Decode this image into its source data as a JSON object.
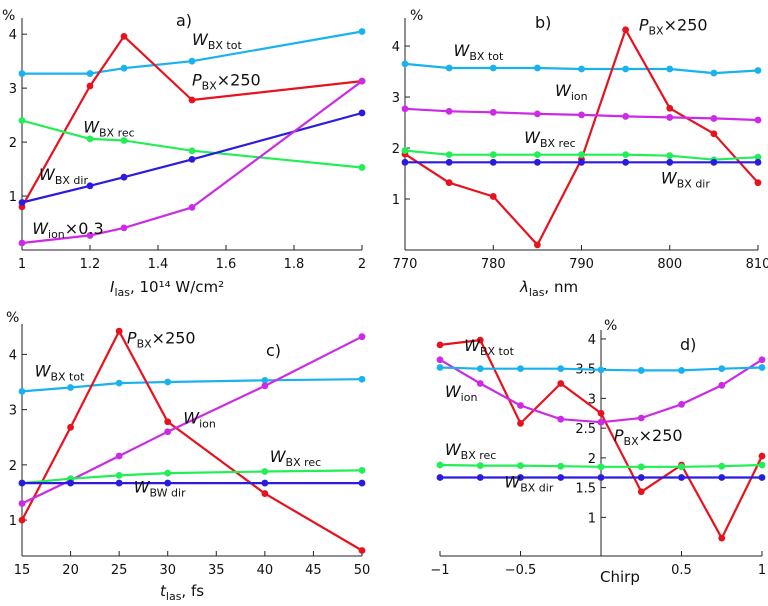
{
  "figure": {
    "percent_symbol": "%"
  },
  "colors": {
    "tot": "#1ab2ee",
    "P": "#e8121e",
    "rec": "#22ee55",
    "dir": "#2b1be0",
    "ion": "#cc2ae6"
  },
  "chart_data": [
    {
      "type": "line",
      "panel_label": "a)",
      "xlabel": {
        "var": "I",
        "sub": "las",
        "rest": ", 10¹⁴ W/cm²"
      },
      "ylabel": "%",
      "xlim": [
        1,
        2
      ],
      "ylim": [
        0,
        4.3
      ],
      "xticks": [
        {
          "v": 1,
          "t": "1"
        },
        {
          "v": 1.2,
          "t": "1.2"
        },
        {
          "v": 1.4,
          "t": "1.4"
        },
        {
          "v": 1.6,
          "t": "1.6"
        },
        {
          "v": 1.8,
          "t": "1.8"
        },
        {
          "v": 2,
          "t": "2"
        }
      ],
      "yticks": [
        {
          "v": 1,
          "t": "1"
        },
        {
          "v": 2,
          "t": "2"
        },
        {
          "v": 3,
          "t": "3"
        },
        {
          "v": 4,
          "t": "4"
        }
      ],
      "series": [
        {
          "key": "tot",
          "label": {
            "main": "W",
            "sub": "BX tot",
            "post": ""
          },
          "x": [
            1,
            1.2,
            1.3,
            1.5,
            2
          ],
          "y": [
            3.27,
            3.27,
            3.37,
            3.5,
            4.05
          ]
        },
        {
          "key": "P",
          "label": {
            "main": "P",
            "sub": "BX",
            "post": "×250"
          },
          "x": [
            1,
            1.2,
            1.3,
            1.5,
            2
          ],
          "y": [
            0.8,
            3.04,
            3.96,
            2.78,
            3.13
          ]
        },
        {
          "key": "rec",
          "label": {
            "main": "W",
            "sub": "BX rec",
            "post": ""
          },
          "x": [
            1,
            1.2,
            1.3,
            1.5,
            2
          ],
          "y": [
            2.4,
            2.06,
            2.03,
            1.84,
            1.53
          ]
        },
        {
          "key": "dir",
          "label": {
            "main": "W",
            "sub": "BX dir",
            "post": ""
          },
          "x": [
            1,
            1.2,
            1.3,
            1.5,
            2
          ],
          "y": [
            0.88,
            1.19,
            1.35,
            1.68,
            2.54
          ]
        },
        {
          "key": "ion",
          "label": {
            "main": "W",
            "sub": "ion",
            "post": "×0.3"
          },
          "x": [
            1,
            1.2,
            1.3,
            1.5,
            2
          ],
          "y": [
            0.13,
            0.27,
            0.41,
            0.79,
            3.13
          ]
        }
      ]
    },
    {
      "type": "line",
      "panel_label": "b)",
      "xlabel": {
        "var": "λ",
        "sub": "las",
        "rest": ", nm"
      },
      "ylabel": "%",
      "xlim": [
        770,
        810
      ],
      "ylim": [
        0,
        4.55
      ],
      "xticks": [
        {
          "v": 770,
          "t": "770"
        },
        {
          "v": 780,
          "t": "780"
        },
        {
          "v": 790,
          "t": "790"
        },
        {
          "v": 800,
          "t": "800"
        },
        {
          "v": 810,
          "t": "810"
        }
      ],
      "yticks": [
        {
          "v": 1,
          "t": "1"
        },
        {
          "v": 2,
          "t": "2"
        },
        {
          "v": 3,
          "t": "3"
        },
        {
          "v": 4,
          "t": "4"
        }
      ],
      "series": [
        {
          "key": "tot",
          "label": {
            "main": "W",
            "sub": "BX tot",
            "post": ""
          },
          "x": [
            770,
            775,
            780,
            785,
            790,
            795,
            800,
            805,
            810
          ],
          "y": [
            3.65,
            3.57,
            3.57,
            3.57,
            3.55,
            3.55,
            3.55,
            3.47,
            3.52
          ]
        },
        {
          "key": "P",
          "label": {
            "main": "P",
            "sub": "BX",
            "post": "×250"
          },
          "x": [
            770,
            775,
            780,
            785,
            790,
            795,
            800,
            805,
            810
          ],
          "y": [
            1.88,
            1.32,
            1.05,
            0.1,
            1.78,
            4.32,
            2.78,
            2.28,
            1.32
          ]
        },
        {
          "key": "ion",
          "label": {
            "main": "W",
            "sub": "ion",
            "post": ""
          },
          "x": [
            770,
            775,
            780,
            785,
            790,
            795,
            800,
            805,
            810
          ],
          "y": [
            2.77,
            2.72,
            2.7,
            2.67,
            2.65,
            2.62,
            2.6,
            2.58,
            2.55
          ]
        },
        {
          "key": "rec",
          "label": {
            "main": "W",
            "sub": "BX rec",
            "post": ""
          },
          "x": [
            770,
            775,
            780,
            785,
            790,
            795,
            800,
            805,
            810
          ],
          "y": [
            1.95,
            1.87,
            1.87,
            1.87,
            1.87,
            1.87,
            1.85,
            1.77,
            1.82
          ]
        },
        {
          "key": "dir",
          "label": {
            "main": "W",
            "sub": "BX dir",
            "post": ""
          },
          "x": [
            770,
            775,
            780,
            785,
            790,
            795,
            800,
            805,
            810
          ],
          "y": [
            1.72,
            1.72,
            1.72,
            1.72,
            1.72,
            1.72,
            1.72,
            1.72,
            1.72
          ]
        }
      ]
    },
    {
      "type": "line",
      "panel_label": "c)",
      "xlabel": {
        "var": "t",
        "sub": "las",
        "rest": ", fs"
      },
      "ylabel": "%",
      "xlim": [
        15,
        50
      ],
      "ylim": [
        0.35,
        4.55
      ],
      "xticks": [
        {
          "v": 15,
          "t": "15"
        },
        {
          "v": 20,
          "t": "20"
        },
        {
          "v": 25,
          "t": "25"
        },
        {
          "v": 30,
          "t": "30"
        },
        {
          "v": 35,
          "t": "35"
        },
        {
          "v": 40,
          "t": "40"
        },
        {
          "v": 45,
          "t": "45"
        },
        {
          "v": 50,
          "t": "50"
        }
      ],
      "yticks": [
        {
          "v": 1,
          "t": "1"
        },
        {
          "v": 2,
          "t": "2"
        },
        {
          "v": 3,
          "t": "3"
        },
        {
          "v": 4,
          "t": "4"
        }
      ],
      "series": [
        {
          "key": "tot",
          "label": {
            "main": "W",
            "sub": "BX tot",
            "post": ""
          },
          "x": [
            15,
            20,
            25,
            30,
            40,
            50
          ],
          "y": [
            3.33,
            3.4,
            3.48,
            3.5,
            3.53,
            3.55
          ]
        },
        {
          "key": "P",
          "label": {
            "main": "P",
            "sub": "BX",
            "post": "×250"
          },
          "x": [
            15,
            20,
            25,
            30,
            40,
            50
          ],
          "y": [
            1.0,
            2.68,
            4.42,
            2.78,
            1.48,
            0.45
          ]
        },
        {
          "key": "ion",
          "label": {
            "main": "W",
            "sub": "ion",
            "post": ""
          },
          "x": [
            15,
            20,
            25,
            30,
            40,
            50
          ],
          "y": [
            1.3,
            1.72,
            2.16,
            2.6,
            3.43,
            4.32
          ]
        },
        {
          "key": "rec",
          "label": {
            "main": "W",
            "sub": "BX rec",
            "post": ""
          },
          "x": [
            15,
            20,
            25,
            30,
            40,
            50
          ],
          "y": [
            1.67,
            1.75,
            1.81,
            1.85,
            1.88,
            1.9
          ]
        },
        {
          "key": "dir",
          "label": {
            "main": "W",
            "sub": "BW dir",
            "post": ""
          },
          "x": [
            15,
            20,
            25,
            30,
            40,
            50
          ],
          "y": [
            1.67,
            1.67,
            1.67,
            1.67,
            1.67,
            1.67
          ]
        }
      ]
    },
    {
      "type": "line",
      "panel_label": "d)",
      "xlabel": {
        "var": "",
        "sub": "",
        "rest": "Chirp"
      },
      "ylabel": "%",
      "xlim": [
        -1,
        1
      ],
      "ylim": [
        0.35,
        4.15
      ],
      "yaxis_at_x": 0,
      "xticks": [
        {
          "v": -1,
          "t": "−1"
        },
        {
          "v": -0.5,
          "t": "−0.5"
        },
        {
          "v": 0.5,
          "t": "0.5"
        },
        {
          "v": 1,
          "t": "1"
        }
      ],
      "yticks": [
        {
          "v": 1,
          "t": "1"
        },
        {
          "v": 1.5,
          "t": "1.5"
        },
        {
          "v": 2,
          "t": "2"
        },
        {
          "v": 2.5,
          "t": "2.5"
        },
        {
          "v": 3,
          "t": "3"
        },
        {
          "v": 3.5,
          "t": "3.5"
        },
        {
          "v": 4,
          "t": "4"
        }
      ],
      "series": [
        {
          "key": "P",
          "label": {
            "main": "P",
            "sub": "BX",
            "post": "×250"
          },
          "x": [
            -1,
            -0.75,
            -0.5,
            -0.25,
            0,
            0.25,
            0.5,
            0.75,
            1
          ],
          "y": [
            3.9,
            3.98,
            2.58,
            3.25,
            2.75,
            1.43,
            1.88,
            0.65,
            2.03
          ]
        },
        {
          "key": "ion",
          "label": {
            "main": "W",
            "sub": "ion",
            "post": ""
          },
          "x": [
            -1,
            -0.75,
            -0.5,
            -0.25,
            0,
            0.25,
            0.5,
            0.75,
            1
          ],
          "y": [
            3.65,
            3.25,
            2.88,
            2.65,
            2.6,
            2.67,
            2.9,
            3.22,
            3.65
          ]
        },
        {
          "key": "tot",
          "label": {
            "main": "W",
            "sub": "BX tot",
            "post": ""
          },
          "x": [
            -1,
            -0.75,
            -0.5,
            -0.25,
            0,
            0.25,
            0.5,
            0.75,
            1
          ],
          "y": [
            3.52,
            3.5,
            3.5,
            3.5,
            3.48,
            3.47,
            3.47,
            3.5,
            3.52
          ]
        },
        {
          "key": "rec",
          "label": {
            "main": "W",
            "sub": "BX rec",
            "post": ""
          },
          "x": [
            -1,
            -0.75,
            -0.5,
            -0.25,
            0,
            0.25,
            0.5,
            0.75,
            1
          ],
          "y": [
            1.88,
            1.87,
            1.87,
            1.86,
            1.85,
            1.85,
            1.85,
            1.86,
            1.88
          ]
        },
        {
          "key": "dir",
          "label": {
            "main": "W",
            "sub": "BX dir",
            "post": ""
          },
          "x": [
            -1,
            -0.75,
            -0.5,
            -0.25,
            0,
            0.25,
            0.5,
            0.75,
            1
          ],
          "y": [
            1.67,
            1.67,
            1.67,
            1.67,
            1.67,
            1.67,
            1.67,
            1.67,
            1.67
          ]
        }
      ]
    }
  ]
}
